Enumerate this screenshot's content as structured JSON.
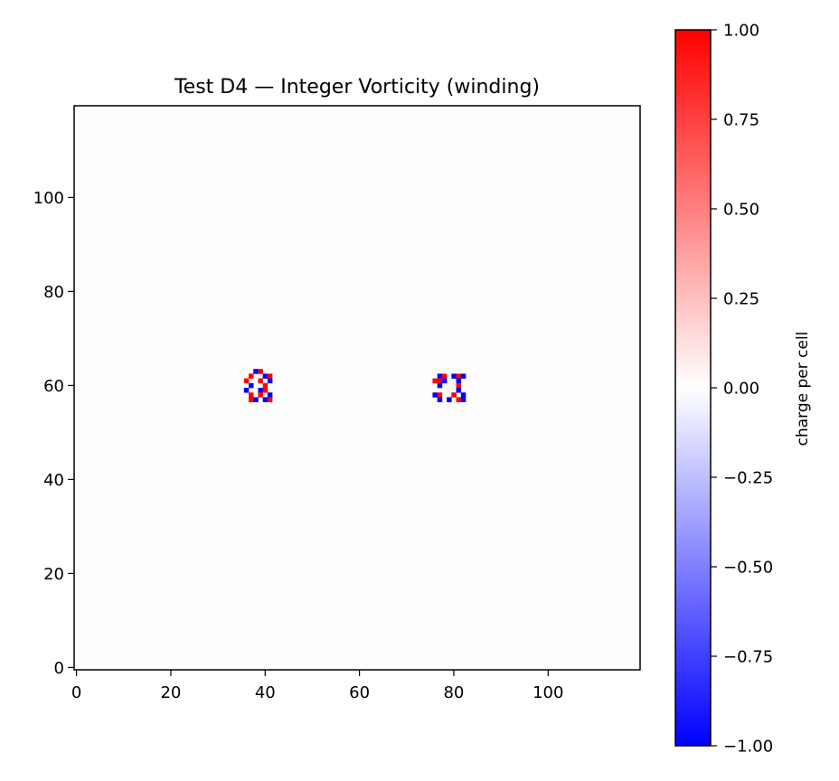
{
  "chart_data": {
    "type": "heatmap",
    "title": "Test D4 — Integer Vorticity (winding)",
    "xlabel": "",
    "ylabel": "",
    "xlim": [
      0,
      119
    ],
    "ylim": [
      0,
      119
    ],
    "origin": "lower",
    "background_value": 0,
    "x_ticks": [
      0,
      20,
      40,
      60,
      80,
      100
    ],
    "y_ticks": [
      0,
      20,
      40,
      60,
      80,
      100
    ],
    "colorbar": {
      "label": "charge per cell",
      "range": [
        -1.0,
        1.0
      ],
      "ticks": [
        1.0,
        0.75,
        0.5,
        0.25,
        0.0,
        -0.25,
        -0.5,
        -0.75,
        -1.0
      ],
      "tick_labels": [
        "1.00",
        "0.75",
        "0.50",
        "0.25",
        "0.00",
        "−0.25",
        "−0.50",
        "−0.75",
        "−1.00"
      ],
      "colors": {
        "min": "#0000ff",
        "mid": "#ffffff",
        "max": "#ff0000"
      }
    },
    "cells": [
      {
        "x": 38,
        "y": 63,
        "v": -1
      },
      {
        "x": 39,
        "y": 63,
        "v": 1
      },
      {
        "x": 37,
        "y": 62,
        "v": 1
      },
      {
        "x": 40,
        "y": 62,
        "v": -1
      },
      {
        "x": 41,
        "y": 62,
        "v": 1
      },
      {
        "x": 36,
        "y": 61,
        "v": 1
      },
      {
        "x": 39,
        "y": 61,
        "v": 1
      },
      {
        "x": 41,
        "y": 61,
        "v": -1
      },
      {
        "x": 37,
        "y": 60,
        "v": -1
      },
      {
        "x": 40,
        "y": 60,
        "v": 1
      },
      {
        "x": 36,
        "y": 59,
        "v": -1
      },
      {
        "x": 39,
        "y": 59,
        "v": -1
      },
      {
        "x": 40,
        "y": 59,
        "v": 1
      },
      {
        "x": 37,
        "y": 58,
        "v": 1
      },
      {
        "x": 39,
        "y": 58,
        "v": 1
      },
      {
        "x": 41,
        "y": 58,
        "v": -1
      },
      {
        "x": 37,
        "y": 57,
        "v": 1
      },
      {
        "x": 38,
        "y": 57,
        "v": -1
      },
      {
        "x": 40,
        "y": 57,
        "v": -1
      },
      {
        "x": 41,
        "y": 57,
        "v": 1
      },
      {
        "x": 77,
        "y": 62,
        "v": -1
      },
      {
        "x": 78,
        "y": 62,
        "v": 1
      },
      {
        "x": 80,
        "y": 62,
        "v": -1
      },
      {
        "x": 81,
        "y": 62,
        "v": 1
      },
      {
        "x": 82,
        "y": 62,
        "v": -1
      },
      {
        "x": 77,
        "y": 61,
        "v": 1
      },
      {
        "x": 78,
        "y": 61,
        "v": -1
      },
      {
        "x": 81,
        "y": 61,
        "v": -1
      },
      {
        "x": 76,
        "y": 61,
        "v": 1
      },
      {
        "x": 77,
        "y": 60,
        "v": -1
      },
      {
        "x": 81,
        "y": 60,
        "v": 1
      },
      {
        "x": 81,
        "y": 59,
        "v": -1
      },
      {
        "x": 76,
        "y": 58,
        "v": -1
      },
      {
        "x": 77,
        "y": 58,
        "v": 1
      },
      {
        "x": 80,
        "y": 58,
        "v": 1
      },
      {
        "x": 82,
        "y": 58,
        "v": -1
      },
      {
        "x": 77,
        "y": 57,
        "v": -1
      },
      {
        "x": 79,
        "y": 57,
        "v": -1
      },
      {
        "x": 81,
        "y": 57,
        "v": 1
      },
      {
        "x": 82,
        "y": 57,
        "v": -1
      }
    ]
  }
}
